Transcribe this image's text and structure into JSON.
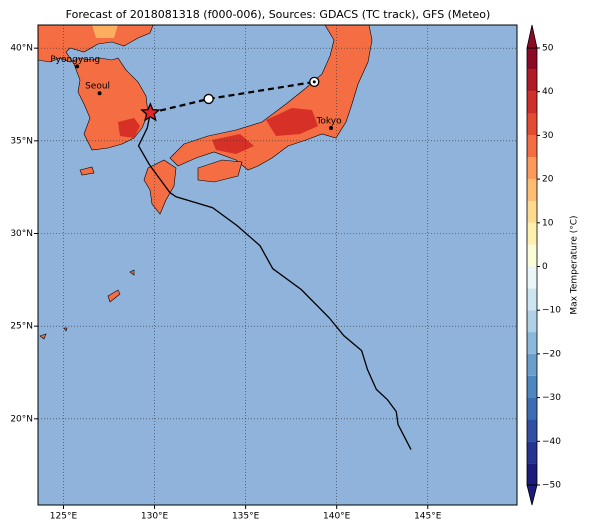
{
  "map": {
    "title": "Forecast of 2018081318 (f000-006), Sources: GDACS (TC track), GFS (Meteo)",
    "lonlim": [
      123.6,
      149.9
    ],
    "latlim": [
      15.35,
      41.25
    ],
    "xticks": [
      {
        "value": 125,
        "label": "125°E"
      },
      {
        "value": 130,
        "label": "130°E"
      },
      {
        "value": 135,
        "label": "135°E"
      },
      {
        "value": 140,
        "label": "140°E"
      },
      {
        "value": 145,
        "label": "145°E"
      }
    ],
    "yticks": [
      {
        "value": 20,
        "label": "20°N"
      },
      {
        "value": 25,
        "label": "25°N"
      },
      {
        "value": 30,
        "label": "30°N"
      },
      {
        "value": 35,
        "label": "35°N"
      },
      {
        "value": 40,
        "label": "40°N"
      }
    ],
    "grid": true,
    "cities": [
      {
        "name": "Pyongyang",
        "lon": 125.75,
        "lat": 39.02
      },
      {
        "name": "Seoul",
        "lon": 126.98,
        "lat": 37.57
      },
      {
        "name": "Tokyo",
        "lon": 139.69,
        "lat": 35.69
      }
    ],
    "track": {
      "lon": [
        144.08,
        143.37,
        143.27,
        142.78,
        142.18,
        141.69,
        141.37,
        140.39,
        139.58,
        138.06,
        136.49,
        135.79,
        134.54,
        133.19,
        131.18,
        130.85,
        130.2,
        129.72,
        129.12,
        129.6,
        129.77
      ],
      "lat": [
        18.34,
        19.69,
        20.39,
        21.04,
        21.58,
        22.66,
        23.68,
        24.49,
        25.46,
        26.97,
        28.1,
        29.34,
        30.42,
        31.39,
        31.98,
        32.2,
        33.06,
        33.71,
        34.73,
        35.7,
        36.51
      ]
    },
    "forecast": {
      "lon": [
        129.77,
        132.97,
        138.77
      ],
      "lat": [
        36.51,
        37.26,
        38.18
      ]
    },
    "colorbar": {
      "label": "Max Temperature (°C)",
      "lim": [
        -50,
        50
      ],
      "ticks": [
        {
          "value": -50,
          "label": "−50"
        },
        {
          "value": -40,
          "label": "−40"
        },
        {
          "value": -30,
          "label": "−30"
        },
        {
          "value": -20,
          "label": "−20"
        },
        {
          "value": -10,
          "label": "−10"
        },
        0,
        10,
        20,
        30,
        40,
        50
      ],
      "levels": [
        -50,
        -45,
        -40,
        -35,
        -30,
        -25,
        -20,
        -15,
        -10,
        -5,
        0,
        5,
        10,
        15,
        20,
        25,
        30,
        35,
        40,
        45,
        50
      ],
      "colors": [
        "#1c1c7a",
        "#26338f",
        "#3050a3",
        "#3c6db4",
        "#4e86c0",
        "#6a9fcc",
        "#8cb8da",
        "#aed1e6",
        "#cde5f0",
        "#eaf6f8",
        "#fbfcd8",
        "#fff0b0",
        "#fed990",
        "#fdbd72",
        "#fb9a5a",
        "#f46d43",
        "#e44b33",
        "#cf2e29",
        "#b01b26",
        "#8c0a25"
      ]
    }
  }
}
